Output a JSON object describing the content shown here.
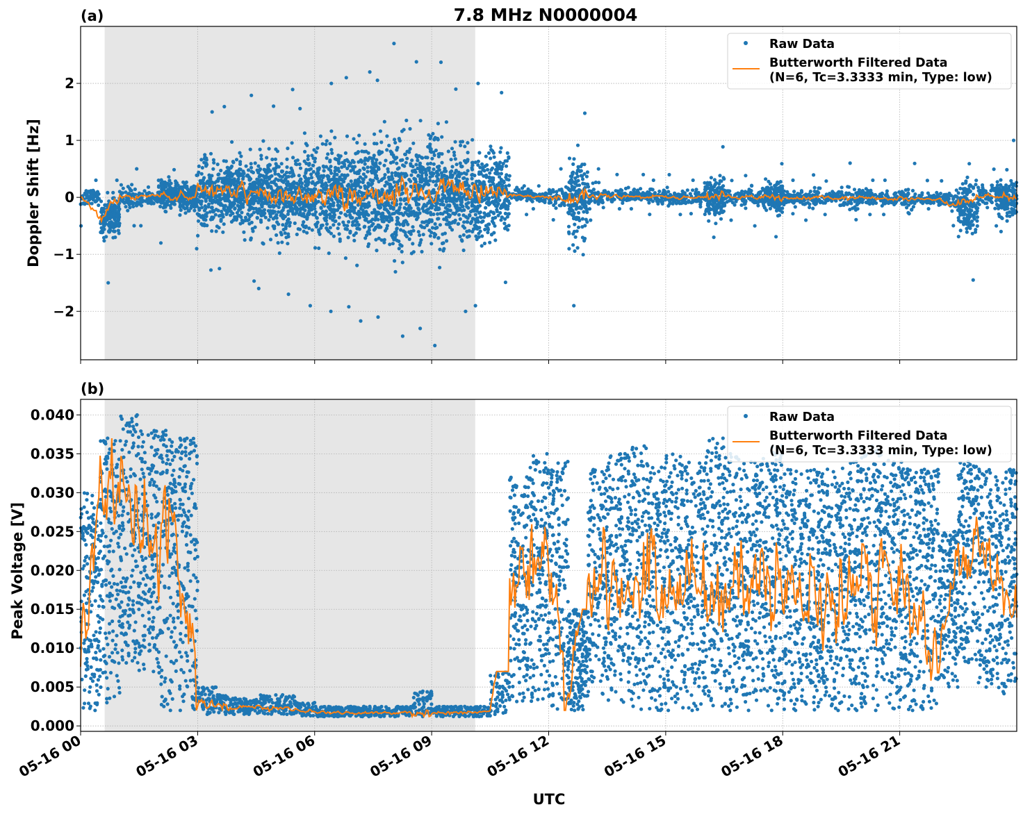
{
  "chart_data": [
    {
      "type": "scatter",
      "panel_label": "(a)",
      "title": "7.8 MHz N0000004",
      "xlabel": "",
      "ylabel": "Doppler Shift [Hz]",
      "xlim": [
        "05-16 00:00",
        "05-17 00:00"
      ],
      "ylim": [
        -2.85,
        3.0
      ],
      "yticks": [
        -2,
        -1,
        0,
        1,
        2
      ],
      "ytick_labels": [
        "−2",
        "−1",
        "0",
        "1",
        "2"
      ],
      "grid": true,
      "shaded_interval": [
        "05-16 00:37",
        "05-16 10:07"
      ],
      "legend_position": "top-right",
      "series": [
        {
          "name": "Raw Data",
          "kind": "points",
          "color": "#1f77b4"
        },
        {
          "name": "Butterworth Filtered Data\n(N=6, Tc=3.3333 min, Type: low)",
          "kind": "line",
          "color": "#ff7f0e"
        }
      ],
      "bin_times_utc": [
        "00:00",
        "00:30",
        "01:00",
        "01:30",
        "02:00",
        "02:30",
        "03:00",
        "03:30",
        "04:00",
        "04:30",
        "05:00",
        "05:30",
        "06:00",
        "06:30",
        "07:00",
        "07:30",
        "08:00",
        "08:30",
        "09:00",
        "09:30",
        "10:00",
        "10:30",
        "11:00",
        "11:30",
        "12:00",
        "12:30",
        "13:00",
        "13:30",
        "14:00",
        "14:30",
        "15:00",
        "15:30",
        "16:00",
        "16:30",
        "17:00",
        "17:30",
        "18:00",
        "18:30",
        "19:00",
        "19:30",
        "20:00",
        "20:30",
        "21:00",
        "21:30",
        "22:00",
        "22:30",
        "23:00",
        "23:30"
      ],
      "raw_min": [
        -0.5,
        -1.5,
        -0.5,
        -0.5,
        -0.8,
        -0.9,
        -1.3,
        -1.3,
        -1.5,
        -1.6,
        -1.7,
        -1.9,
        -2.0,
        -2.0,
        -2.2,
        -2.1,
        -2.5,
        -2.3,
        -2.6,
        -2.0,
        -1.9,
        -1.5,
        -0.3,
        -0.2,
        -0.4,
        -1.9,
        -0.4,
        -0.2,
        -0.2,
        -0.3,
        -0.3,
        -0.3,
        -0.7,
        -0.4,
        -0.5,
        -0.7,
        -0.3,
        -0.4,
        -0.3,
        -0.4,
        -0.3,
        -0.3,
        -0.3,
        -0.2,
        -0.5,
        -1.45,
        -0.5,
        -0.6
      ],
      "raw_max": [
        0.3,
        0.3,
        0.5,
        0.3,
        0.5,
        0.4,
        1.5,
        1.6,
        1.8,
        1.6,
        1.9,
        1.6,
        2.0,
        2.1,
        2.2,
        2.1,
        2.7,
        2.4,
        2.4,
        1.9,
        2.0,
        1.9,
        0.2,
        0.2,
        0.5,
        1.5,
        0.5,
        0.4,
        0.4,
        0.3,
        0.4,
        0.3,
        0.9,
        0.3,
        0.4,
        0.6,
        0.3,
        0.4,
        0.3,
        0.6,
        0.3,
        0.3,
        0.6,
        0.3,
        0.3,
        0.6,
        0.5,
        1.0
      ],
      "filtered_mean": [
        0.0,
        -0.35,
        0.0,
        0.0,
        0.05,
        0.0,
        0.05,
        0.1,
        0.05,
        0.1,
        0.0,
        0.05,
        0.05,
        0.05,
        0.0,
        0.1,
        0.1,
        0.1,
        0.05,
        0.1,
        0.0,
        0.1,
        0.05,
        0.02,
        0.0,
        -0.05,
        0.02,
        0.02,
        0.02,
        0.01,
        0.0,
        0.0,
        0.0,
        0.0,
        0.0,
        0.0,
        0.0,
        -0.02,
        0.0,
        -0.02,
        0.0,
        -0.03,
        -0.02,
        -0.02,
        -0.05,
        -0.15,
        0.02,
        0.0
      ]
    },
    {
      "type": "scatter",
      "panel_label": "(b)",
      "xlabel": "UTC",
      "ylabel": "Peak Voltage [V]",
      "xlim": [
        "05-16 00:00",
        "05-17 00:00"
      ],
      "ylim": [
        -0.0007,
        0.042
      ],
      "yticks": [
        0.0,
        0.005,
        0.01,
        0.015,
        0.02,
        0.025,
        0.03,
        0.035,
        0.04
      ],
      "ytick_labels": [
        "0.000",
        "0.005",
        "0.010",
        "0.015",
        "0.020",
        "0.025",
        "0.030",
        "0.035",
        "0.040"
      ],
      "xticks": [
        "05-16 00",
        "05-16 03",
        "05-16 06",
        "05-16 09",
        "05-16 12",
        "05-16 15",
        "05-16 18",
        "05-16 21"
      ],
      "grid": true,
      "shaded_interval": [
        "05-16 00:37",
        "05-16 10:07"
      ],
      "legend_position": "top-right",
      "series": [
        {
          "name": "Raw Data",
          "kind": "points",
          "color": "#1f77b4"
        },
        {
          "name": "Butterworth Filtered Data\n(N=6, Tc=3.3333 min, Type: low)",
          "kind": "line",
          "color": "#ff7f0e"
        }
      ],
      "raw_min": [
        0.002,
        0.003,
        0.008,
        0.007,
        0.002,
        0.002,
        0.0015,
        0.0015,
        0.0015,
        0.0015,
        0.0015,
        0.0013,
        0.0012,
        0.0012,
        0.0012,
        0.0012,
        0.0012,
        0.0012,
        0.0012,
        0.0012,
        0.0012,
        0.0015,
        0.003,
        0.003,
        0.002,
        0.002,
        0.004,
        0.003,
        0.002,
        0.002,
        0.002,
        0.002,
        0.002,
        0.002,
        0.002,
        0.002,
        0.002,
        0.002,
        0.002,
        0.002,
        0.002,
        0.002,
        0.002,
        0.002,
        0.005,
        0.008,
        0.005,
        0.004
      ],
      "raw_max": [
        0.03,
        0.037,
        0.04,
        0.038,
        0.038,
        0.037,
        0.005,
        0.004,
        0.0035,
        0.004,
        0.004,
        0.003,
        0.0025,
        0.0025,
        0.0025,
        0.0025,
        0.0025,
        0.0045,
        0.0025,
        0.0025,
        0.0025,
        0.007,
        0.032,
        0.035,
        0.034,
        0.015,
        0.033,
        0.035,
        0.036,
        0.034,
        0.035,
        0.034,
        0.037,
        0.035,
        0.034,
        0.036,
        0.033,
        0.033,
        0.033,
        0.034,
        0.036,
        0.035,
        0.034,
        0.033,
        0.025,
        0.034,
        0.033,
        0.033
      ],
      "filtered_mean": [
        0.01,
        0.028,
        0.03,
        0.03,
        0.022,
        0.025,
        0.0028,
        0.0025,
        0.0022,
        0.0024,
        0.0023,
        0.002,
        0.0017,
        0.0017,
        0.0017,
        0.0017,
        0.0017,
        0.0017,
        0.0017,
        0.0017,
        0.0017,
        0.002,
        0.018,
        0.02,
        0.02,
        0.004,
        0.018,
        0.018,
        0.018,
        0.019,
        0.018,
        0.018,
        0.019,
        0.017,
        0.018,
        0.018,
        0.017,
        0.018,
        0.017,
        0.016,
        0.018,
        0.018,
        0.017,
        0.016,
        0.008,
        0.024,
        0.022,
        0.018
      ]
    }
  ],
  "legend": {
    "raw_label": "Raw Data",
    "filt_label_1": "Butterworth Filtered Data",
    "filt_label_2": "(N=6, Tc=3.3333 min, Type: low)"
  }
}
